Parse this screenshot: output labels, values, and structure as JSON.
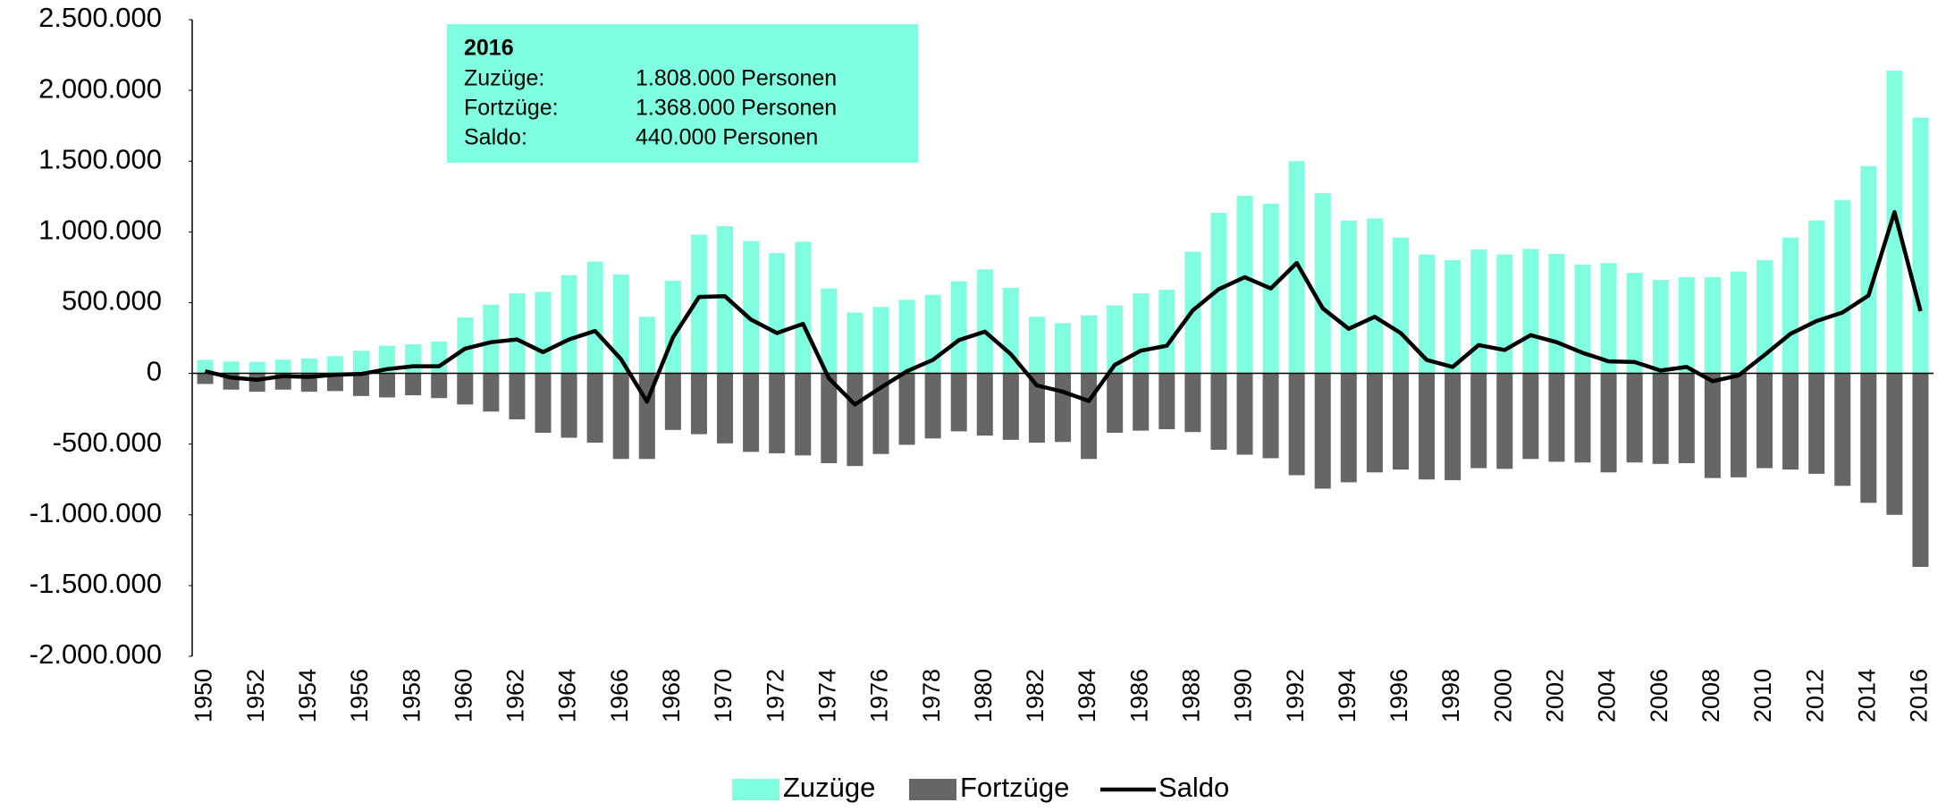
{
  "chart_data": {
    "type": "bar",
    "categories": [
      "1950",
      null,
      "1952",
      null,
      "1954",
      null,
      "1956",
      null,
      "1958",
      null,
      "1960",
      null,
      "1962",
      null,
      "1964",
      null,
      "1966",
      null,
      "1968",
      null,
      "1970",
      null,
      "1972",
      null,
      "1974",
      null,
      "1976",
      null,
      "1978",
      null,
      "1980",
      null,
      "1982",
      null,
      "1984",
      null,
      "1986",
      null,
      "1988",
      null,
      "1990",
      null,
      "1992",
      null,
      "1994",
      null,
      "1996",
      null,
      "1998",
      null,
      "2000",
      null,
      "2002",
      null,
      "2004",
      null,
      "2006",
      null,
      "2008",
      null,
      "2010",
      null,
      "2012",
      null,
      "2014",
      null,
      "2016"
    ],
    "series": [
      {
        "name": "Zuzüge",
        "color": "#7fffdf",
        "type": "bar",
        "values": [
          96000,
          84000,
          82000,
          97000,
          105000,
          122000,
          160000,
          195000,
          205000,
          225000,
          395000,
          485000,
          565000,
          575000,
          695000,
          790000,
          700000,
          400000,
          655000,
          980000,
          1040000,
          935000,
          850000,
          930000,
          600000,
          430000,
          470000,
          520000,
          555000,
          650000,
          735000,
          605000,
          400000,
          355000,
          410000,
          480000,
          565000,
          590000,
          860000,
          1135000,
          1255000,
          1200000,
          1500000,
          1275000,
          1080000,
          1095000,
          960000,
          840000,
          800000,
          875000,
          840000,
          880000,
          845000,
          770000,
          780000,
          710000,
          660000,
          680000,
          680000,
          720000,
          800000,
          960000,
          1080000,
          1225000,
          1465000,
          2140000,
          1808000
        ]
      },
      {
        "name": "Fortzüge",
        "color": "#666666",
        "type": "bar",
        "values": [
          -75000,
          -115000,
          -130000,
          -115000,
          -130000,
          -125000,
          -160000,
          -170000,
          -155000,
          -175000,
          -220000,
          -270000,
          -325000,
          -420000,
          -455000,
          -490000,
          -605000,
          -605000,
          -400000,
          -430000,
          -495000,
          -555000,
          -565000,
          -580000,
          -635000,
          -655000,
          -570000,
          -505000,
          -460000,
          -410000,
          -440000,
          -470000,
          -490000,
          -485000,
          -605000,
          -420000,
          -405000,
          -395000,
          -415000,
          -540000,
          -575000,
          -600000,
          -720000,
          -815000,
          -770000,
          -700000,
          -680000,
          -750000,
          -755000,
          -670000,
          -675000,
          -605000,
          -625000,
          -630000,
          -700000,
          -630000,
          -640000,
          -635000,
          -740000,
          -735000,
          -670000,
          -680000,
          -710000,
          -795000,
          -915000,
          -1000000,
          -1368000
        ]
      },
      {
        "name": "Saldo",
        "color": "#000000",
        "type": "line",
        "values": [
          15000,
          -30000,
          -45000,
          -20000,
          -25000,
          -10000,
          -5000,
          30000,
          50000,
          50000,
          175000,
          220000,
          240000,
          150000,
          240000,
          300000,
          100000,
          -200000,
          255000,
          540000,
          545000,
          380000,
          285000,
          350000,
          -35000,
          -220000,
          -100000,
          15000,
          95000,
          235000,
          295000,
          135000,
          -85000,
          -130000,
          -195000,
          60000,
          160000,
          195000,
          445000,
          595000,
          680000,
          600000,
          780000,
          460000,
          315000,
          400000,
          285000,
          95000,
          45000,
          200000,
          165000,
          270000,
          220000,
          145000,
          85000,
          80000,
          20000,
          45000,
          -55000,
          -15000,
          130000,
          280000,
          370000,
          430000,
          550000,
          1140000,
          440000
        ]
      }
    ],
    "ylim": [
      -2000000,
      2500000
    ],
    "yticks": [
      {
        "value": -2000000,
        "label": "-2.000.000"
      },
      {
        "value": -1500000,
        "label": "-1.500.000"
      },
      {
        "value": -1000000,
        "label": "-1.000.000"
      },
      {
        "value": -500000,
        "label": "-500.000"
      },
      0,
      {
        "value": 500000,
        "label": "500.000"
      },
      {
        "value": 1000000,
        "label": "1.000.000"
      },
      {
        "value": 1500000,
        "label": "1.500.000"
      },
      {
        "value": 2000000,
        "label": "2.000.000"
      },
      {
        "value": 2500000,
        "label": "2.500.000"
      }
    ],
    "legend": "bottom",
    "annotation": {
      "title": "2016",
      "color": "#7fffdf",
      "lines": [
        [
          "Zuzüge:",
          "1.808.000 Personen"
        ],
        [
          "Fortzüge:",
          "1.368.000 Personen"
        ],
        [
          "Saldo:",
          "440.000 Personen"
        ]
      ]
    }
  }
}
